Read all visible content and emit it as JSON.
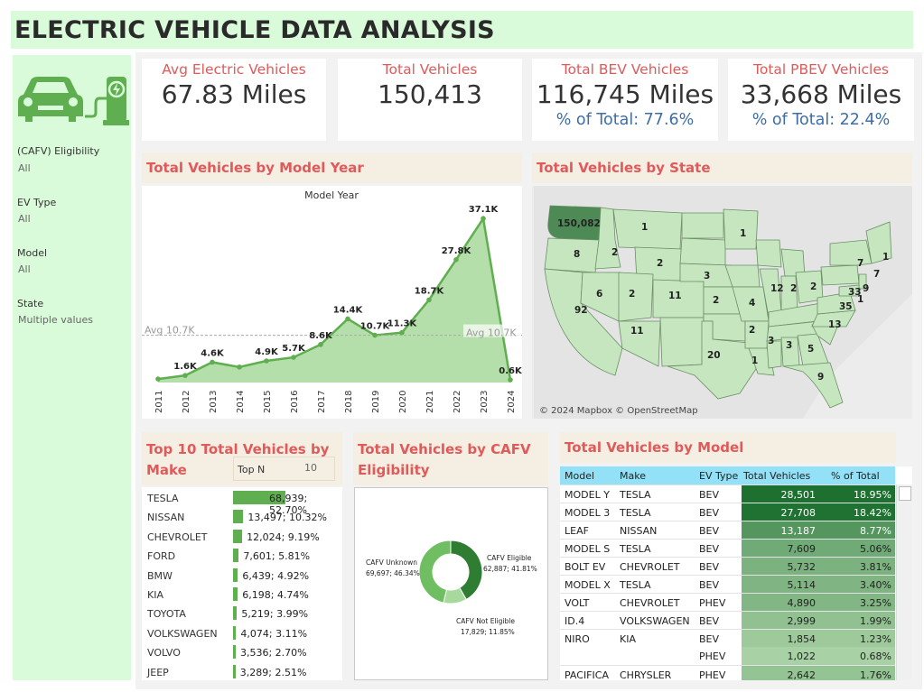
{
  "title": "ELECTRIC VEHICLE DATA ANALYSIS",
  "filters": [
    {
      "label": "(CAFV) Eligibility",
      "value": "All"
    },
    {
      "label": "EV Type",
      "value": "All"
    },
    {
      "label": "Model",
      "value": "All"
    },
    {
      "label": "State",
      "value": "Multiple values"
    }
  ],
  "kpis": {
    "avg": {
      "title": "Avg Electric Vehicles",
      "value": "67.83 Miles"
    },
    "total": {
      "title": "Total Vehicles",
      "value": "150,413"
    },
    "bev": {
      "title": "Total BEV Vehicles",
      "value": "116,745 Miles",
      "sub": "% of Total: 77.6%"
    },
    "pbev": {
      "title": "Total PBEV Vehicles",
      "value": "33,668 Miles",
      "sub": "% of Total: 22.4%"
    }
  },
  "colors": {
    "accent_red": "#e05a5a",
    "green_dark": "#2e7d32",
    "green": "#5fae4f",
    "green_light": "#c5e6bf",
    "header_bg": "#f5eee3",
    "table_header": "#93e1f7"
  },
  "model_year": {
    "title": "Total Vehicles by Model Year",
    "axis_title": "Model Year",
    "avg_label": "Avg 10.7K",
    "avg_value": 10.7,
    "chart_data": {
      "type": "area",
      "x": [
        "2011",
        "2012",
        "2013",
        "2014",
        "2015",
        "2016",
        "2017",
        "2018",
        "2019",
        "2020",
        "2021",
        "2022",
        "2023",
        "2024"
      ],
      "values": [
        0.8,
        1.6,
        4.6,
        3.5,
        4.9,
        5.7,
        8.6,
        14.4,
        10.7,
        11.3,
        18.7,
        27.8,
        37.1,
        0.6
      ],
      "labels": [
        "",
        "1.6K",
        "4.6K",
        "",
        "4.9K",
        "5.7K",
        "8.6K",
        "14.4K",
        "10.7K",
        "11.3K",
        "18.7K",
        "27.8K",
        "37.1K",
        "0.6K"
      ],
      "ylim": [
        0,
        40
      ]
    }
  },
  "state_map": {
    "title": "Total Vehicles by State",
    "attribution": "© 2024 Mapbox © OpenStreetMap",
    "labels": [
      "150,082",
      "1",
      "8",
      "2",
      "2",
      "1",
      "6",
      "2",
      "11",
      "92",
      "11",
      "3",
      "2",
      "20",
      "4",
      "12",
      "2",
      "2",
      "7",
      "1",
      "7",
      "9",
      "33",
      "35",
      "1",
      "13",
      "2",
      "3",
      "1",
      "3",
      "5",
      "9"
    ]
  },
  "make": {
    "title": "Top 10 Total Vehicles by Make",
    "topn_label": "Top N",
    "topn_value": "10",
    "rows": [
      {
        "name": "TESLA",
        "value": 68939,
        "label": "68,939; 52.70%"
      },
      {
        "name": "NISSAN",
        "value": 13497,
        "label": "13,497; 10.32%"
      },
      {
        "name": "CHEVROLET",
        "value": 12024,
        "label": "12,024; 9.19%"
      },
      {
        "name": "FORD",
        "value": 7601,
        "label": "7,601; 5.81%"
      },
      {
        "name": "BMW",
        "value": 6439,
        "label": "6,439; 4.92%"
      },
      {
        "name": "KIA",
        "value": 6198,
        "label": "6,198; 4.74%"
      },
      {
        "name": "TOYOTA",
        "value": 5219,
        "label": "5,219; 3.99%"
      },
      {
        "name": "VOLKSWAGEN",
        "value": 4074,
        "label": "4,074; 3.11%"
      },
      {
        "name": "VOLVO",
        "value": 3536,
        "label": "3,536; 2.70%"
      },
      {
        "name": "JEEP",
        "value": 3289,
        "label": "3,289; 2.51%"
      }
    ]
  },
  "cafv": {
    "title": "Total Vehicles by CAFV Eligibility",
    "chart_data": {
      "type": "pie",
      "slices": [
        {
          "name": "CAFV Eligible",
          "value": 62887,
          "pct": "41.81%",
          "label": "62,887; 41.81%",
          "color": "#2e7d32"
        },
        {
          "name": "CAFV Not Eligible",
          "value": 17829,
          "pct": "11.85%",
          "label": "17,829; 11.85%",
          "color": "#a8d99c"
        },
        {
          "name": "CAFV Unknown",
          "value": 69697,
          "pct": "46.34%",
          "label": "69,697; 46.34%",
          "color": "#6fbf62"
        }
      ]
    }
  },
  "model_table": {
    "title": "Total Vehicles by Model",
    "columns": [
      "Model",
      "Make",
      "EV Type",
      "Total Vehicles",
      "% of Total"
    ],
    "rows": [
      {
        "model": "MODEL Y",
        "make": "TESLA",
        "type": "BEV",
        "total": "28,501",
        "pct": "18.95%",
        "v": 28501
      },
      {
        "model": "MODEL 3",
        "make": "TESLA",
        "type": "BEV",
        "total": "27,708",
        "pct": "18.42%",
        "v": 27708
      },
      {
        "model": "LEAF",
        "make": "NISSAN",
        "type": "BEV",
        "total": "13,187",
        "pct": "8.77%",
        "v": 13187
      },
      {
        "model": "MODEL S",
        "make": "TESLA",
        "type": "BEV",
        "total": "7,609",
        "pct": "5.06%",
        "v": 7609
      },
      {
        "model": "BOLT EV",
        "make": "CHEVROLET",
        "type": "BEV",
        "total": "5,732",
        "pct": "3.81%",
        "v": 5732
      },
      {
        "model": "MODEL X",
        "make": "TESLA",
        "type": "BEV",
        "total": "5,114",
        "pct": "3.40%",
        "v": 5114
      },
      {
        "model": "VOLT",
        "make": "CHEVROLET",
        "type": "PHEV",
        "total": "4,890",
        "pct": "3.25%",
        "v": 4890
      },
      {
        "model": "ID.4",
        "make": "VOLKSWAGEN",
        "type": "BEV",
        "total": "2,999",
        "pct": "1.99%",
        "v": 2999
      },
      {
        "model": "NIRO",
        "make": "KIA",
        "type": "BEV",
        "total": "1,854",
        "pct": "1.23%",
        "v": 1854
      },
      {
        "model": "",
        "make": "",
        "type": "PHEV",
        "total": "1,022",
        "pct": "0.68%",
        "v": 1022
      },
      {
        "model": "PACIFICA",
        "make": "CHRYSLER",
        "type": "PHEV",
        "total": "2,642",
        "pct": "1.76%",
        "v": 2642
      }
    ]
  }
}
